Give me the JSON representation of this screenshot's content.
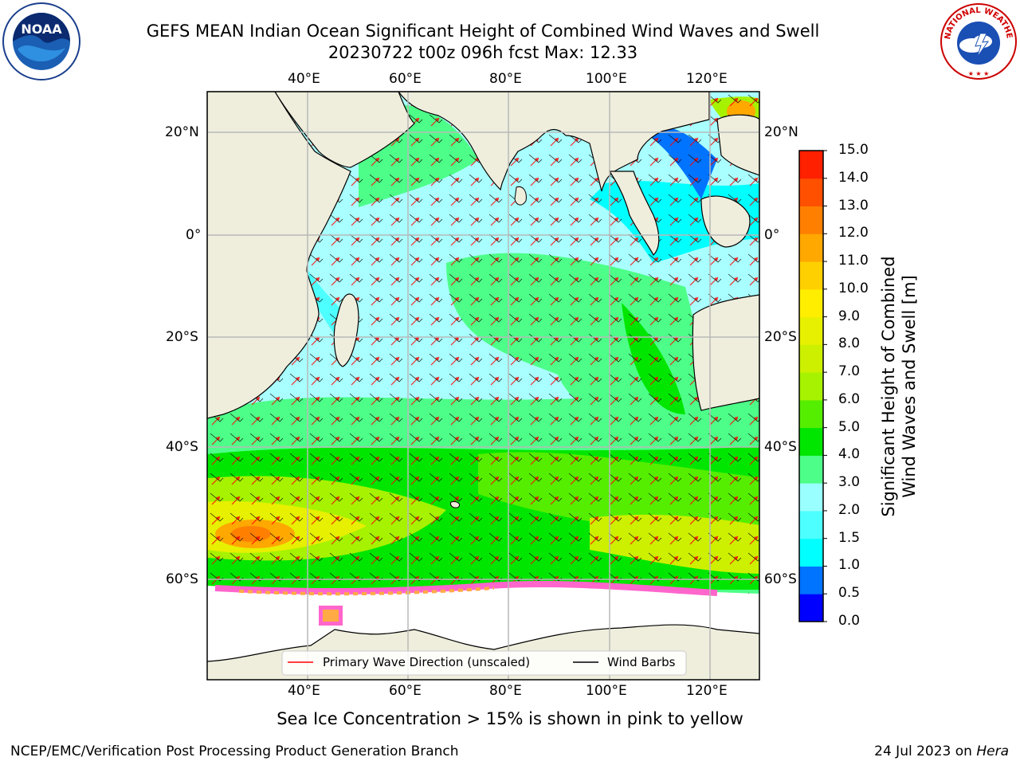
{
  "header": {
    "title_line1": "GEFS MEAN Indian Ocean Significant Height of Combined Wind Waves and Swell",
    "title_line2": "20230722 t00z 096h fcst   Max: 12.33"
  },
  "logos": {
    "left": {
      "icon": "noaa-logo",
      "text": "NOAA"
    },
    "right": {
      "icon": "national-weather-service-logo",
      "text": "NATIONAL WEATHER SERVICE"
    }
  },
  "map": {
    "lon_ticks_top": [
      "40°E",
      "60°E",
      "80°E",
      "100°E",
      "120°E"
    ],
    "lon_ticks_bottom": [
      "40°E",
      "60°E",
      "80°E",
      "100°E",
      "120°E"
    ],
    "lat_ticks_left": [
      "20°N",
      "0°",
      "20°S",
      "40°S",
      "60°S"
    ],
    "lat_ticks_right": [
      "20°N",
      "0°",
      "20°S",
      "40°S",
      "60°S"
    ],
    "legend": [
      {
        "label": "Primary Wave Direction (unscaled)",
        "color": "#ff0000"
      },
      {
        "label": "Wind Barbs",
        "color": "#000000"
      }
    ]
  },
  "colorbar": {
    "title_line1": "Significant Height of Combined",
    "title_line2": "Wind Waves and Swell [m]",
    "ticks": [
      "0.0",
      "0.5",
      "1.0",
      "1.5",
      "2.0",
      "3.0",
      "4.0",
      "5.0",
      "6.0",
      "7.0",
      "8.0",
      "9.0",
      "10.0",
      "11.0",
      "12.0",
      "13.0",
      "14.0",
      "15.0"
    ],
    "colors": [
      "#0000ff",
      "#0073ff",
      "#00ffff",
      "#4dffff",
      "#99ffff",
      "#4dff88",
      "#00e600",
      "#55ee00",
      "#a6f200",
      "#ccf000",
      "#e6f000",
      "#ffee00",
      "#ffd000",
      "#ffa800",
      "#ff8000",
      "#ff5000",
      "#ff2000"
    ]
  },
  "footnote": "Sea Ice Concentration > 15% is shown in pink to yellow",
  "footer": {
    "left": "NCEP/EMC/Verification Post Processing Product Generation Branch",
    "right_prefix": "24 Jul 2023 on ",
    "right_host": "Hera"
  }
}
